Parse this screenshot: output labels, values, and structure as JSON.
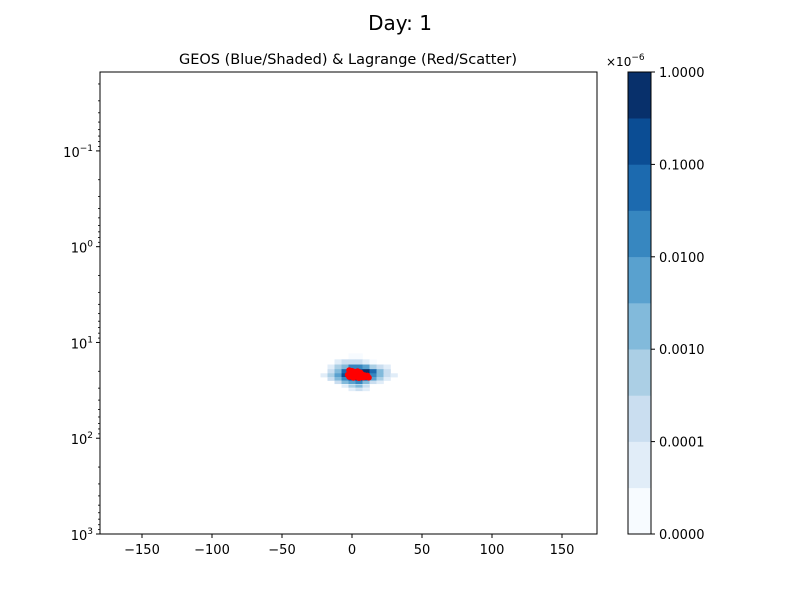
{
  "chart_data": {
    "type": "heatmap",
    "suptitle": "Day: 1",
    "title": "GEOS (Blue/Shaded) & Lagrange (Red/Scatter)",
    "xlabel": "",
    "ylabel": "",
    "xlim": [
      -180,
      175
    ],
    "ylim_log_inverted": [
      1000,
      0.015
    ],
    "x_ticks": [
      {
        "value": -150,
        "label": "−150"
      },
      {
        "value": -100,
        "label": "−100"
      },
      {
        "value": -50,
        "label": "−50"
      },
      {
        "value": 0,
        "label": "0"
      },
      {
        "value": 50,
        "label": "50"
      },
      {
        "value": 100,
        "label": "100"
      },
      {
        "value": 150,
        "label": "150"
      }
    ],
    "y_ticks": [
      {
        "value": 0.1,
        "base": "10",
        "exp": "−1"
      },
      {
        "value": 1,
        "base": "10",
        "exp": "0"
      },
      {
        "value": 10,
        "base": "10",
        "exp": "1"
      },
      {
        "value": 100,
        "base": "10",
        "exp": "2"
      },
      {
        "value": 1000,
        "base": "10",
        "exp": "3"
      }
    ],
    "colorbar": {
      "multiplier": "×10",
      "multiplier_exp": "−6",
      "colors": [
        "#f7fbff",
        "#e1edf8",
        "#cadef0",
        "#abcfe5",
        "#82badb",
        "#59a1cf",
        "#3787c0",
        "#1c6aaf",
        "#0b4d94",
        "#08306b"
      ],
      "tick_labels": [
        "0.0000",
        "0.0001",
        "0.0010",
        "0.0100",
        "0.1000",
        "1.0000"
      ]
    },
    "geos_cells": [
      {
        "lon": 0,
        "p": 14,
        "level": 0
      },
      {
        "lon": 5,
        "p": 14,
        "level": 0
      },
      {
        "lon": -10,
        "p": 16,
        "level": 1
      },
      {
        "lon": -5,
        "p": 16,
        "level": 2
      },
      {
        "lon": 0,
        "p": 16,
        "level": 2
      },
      {
        "lon": 5,
        "p": 16,
        "level": 2
      },
      {
        "lon": 10,
        "p": 16,
        "level": 1
      },
      {
        "lon": 15,
        "p": 16,
        "level": 0
      },
      {
        "lon": -15,
        "p": 18,
        "level": 1
      },
      {
        "lon": -10,
        "p": 18,
        "level": 3
      },
      {
        "lon": -5,
        "p": 18,
        "level": 4
      },
      {
        "lon": 0,
        "p": 18,
        "level": 6
      },
      {
        "lon": 5,
        "p": 18,
        "level": 6
      },
      {
        "lon": 10,
        "p": 18,
        "level": 5
      },
      {
        "lon": 15,
        "p": 18,
        "level": 3
      },
      {
        "lon": 20,
        "p": 18,
        "level": 2
      },
      {
        "lon": 25,
        "p": 18,
        "level": 1
      },
      {
        "lon": -15,
        "p": 20,
        "level": 2
      },
      {
        "lon": -10,
        "p": 20,
        "level": 4
      },
      {
        "lon": -5,
        "p": 20,
        "level": 7
      },
      {
        "lon": 0,
        "p": 20,
        "level": 8
      },
      {
        "lon": 5,
        "p": 20,
        "level": 8
      },
      {
        "lon": 10,
        "p": 20,
        "level": 9
      },
      {
        "lon": 15,
        "p": 20,
        "level": 7
      },
      {
        "lon": 20,
        "p": 20,
        "level": 4
      },
      {
        "lon": 25,
        "p": 20,
        "level": 2
      },
      {
        "lon": -20,
        "p": 22,
        "level": 1
      },
      {
        "lon": -15,
        "p": 22,
        "level": 3
      },
      {
        "lon": -10,
        "p": 22,
        "level": 5
      },
      {
        "lon": -5,
        "p": 22,
        "level": 8
      },
      {
        "lon": 0,
        "p": 22,
        "level": 9
      },
      {
        "lon": 5,
        "p": 22,
        "level": 9
      },
      {
        "lon": 10,
        "p": 22,
        "level": 8
      },
      {
        "lon": 15,
        "p": 22,
        "level": 6
      },
      {
        "lon": 20,
        "p": 22,
        "level": 4
      },
      {
        "lon": 25,
        "p": 22,
        "level": 2
      },
      {
        "lon": 30,
        "p": 22,
        "level": 1
      },
      {
        "lon": -15,
        "p": 24,
        "level": 2
      },
      {
        "lon": -10,
        "p": 24,
        "level": 4
      },
      {
        "lon": -5,
        "p": 24,
        "level": 6
      },
      {
        "lon": 0,
        "p": 24,
        "level": 8
      },
      {
        "lon": 5,
        "p": 24,
        "level": 9
      },
      {
        "lon": 10,
        "p": 24,
        "level": 8
      },
      {
        "lon": 15,
        "p": 24,
        "level": 5
      },
      {
        "lon": 20,
        "p": 24,
        "level": 3
      },
      {
        "lon": 25,
        "p": 24,
        "level": 1
      },
      {
        "lon": -10,
        "p": 26,
        "level": 2
      },
      {
        "lon": -5,
        "p": 26,
        "level": 4
      },
      {
        "lon": 0,
        "p": 26,
        "level": 5
      },
      {
        "lon": 5,
        "p": 26,
        "level": 6
      },
      {
        "lon": 10,
        "p": 26,
        "level": 4
      },
      {
        "lon": 15,
        "p": 26,
        "level": 2
      },
      {
        "lon": 20,
        "p": 26,
        "level": 1
      },
      {
        "lon": -5,
        "p": 28.5,
        "level": 1
      },
      {
        "lon": 0,
        "p": 28.5,
        "level": 3
      },
      {
        "lon": 5,
        "p": 28.5,
        "level": 4
      },
      {
        "lon": 10,
        "p": 28.5,
        "level": 2
      },
      {
        "lon": 0,
        "p": 31,
        "level": 1
      },
      {
        "lon": 5,
        "p": 31,
        "level": 2
      },
      {
        "lon": 10,
        "p": 31,
        "level": 1
      }
    ],
    "lagrange_points": [
      {
        "lon": -2,
        "p": 19.5
      },
      {
        "lon": 0,
        "p": 19.8
      },
      {
        "lon": 2,
        "p": 20.2
      },
      {
        "lon": 4,
        "p": 20.0
      },
      {
        "lon": 6,
        "p": 20.6
      },
      {
        "lon": -1,
        "p": 21.0
      },
      {
        "lon": 1,
        "p": 21.5
      },
      {
        "lon": 3,
        "p": 21.2
      },
      {
        "lon": 5,
        "p": 21.8
      },
      {
        "lon": 7,
        "p": 21.4
      },
      {
        "lon": 9,
        "p": 22.0
      },
      {
        "lon": 0,
        "p": 22.4
      },
      {
        "lon": 2,
        "p": 22.8
      },
      {
        "lon": 4,
        "p": 23.0
      },
      {
        "lon": 6,
        "p": 22.6
      },
      {
        "lon": 8,
        "p": 23.2
      },
      {
        "lon": 10,
        "p": 22.9
      },
      {
        "lon": 12,
        "p": 23.3
      },
      {
        "lon": -3,
        "p": 21.8
      },
      {
        "lon": 3,
        "p": 20.8
      },
      {
        "lon": 1,
        "p": 23.4
      },
      {
        "lon": 5,
        "p": 23.6
      },
      {
        "lon": 11,
        "p": 22.2
      },
      {
        "lon": -2,
        "p": 22.9
      }
    ]
  }
}
